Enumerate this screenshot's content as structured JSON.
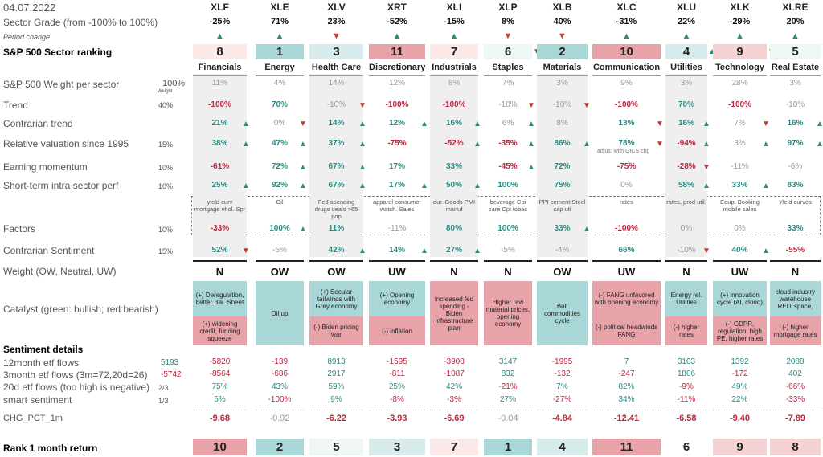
{
  "date": "04.07.2022",
  "tickers": [
    "XLF",
    "XLE",
    "XLV",
    "XRT",
    "XLI",
    "XLP",
    "XLB",
    "XLC",
    "XLU",
    "XLK",
    "XLRE"
  ],
  "sector_names": [
    "Financials",
    "Energy",
    "Health Care",
    "Discretionary",
    "Industrials",
    "Staples",
    "Materials",
    "Communication",
    "Utilities",
    "Technology",
    "Real Estate"
  ],
  "labels": {
    "sector_grade": "Sector Grade (from -100% to 100%)",
    "period_change": "Period change",
    "ranking": "S&P 500 Sector ranking",
    "weight_per_sector": "S&P 500 Weight per sector",
    "trend": "Trend",
    "contrarian_trend": "Contrarian trend",
    "relative_valuation": "Relative valuation since 1995",
    "earning_momentum": "Earning momentum",
    "short_term": "Short-term intra sector perf",
    "factors": "Factors",
    "contrarian_sentiment": "Contrarian Sentiment",
    "weight": "Weight (OW, Neutral, UW)",
    "catalyst": "Catalyst (green: bullish; red:bearish)",
    "sentiment_details": "Sentiment details",
    "etf12": "12month etf flows",
    "etf3": "3month etf flows (3m=72,20d=26)",
    "etf20": "20d etf flows (too high is negative)",
    "smart": "smart sentiment",
    "chg": "CHG_PCT_1m",
    "rank1m": "Rank 1 month return"
  },
  "factor_weights": {
    "weight_total": "100%",
    "weight_sub": "Weight",
    "trend": "40%",
    "relative_valuation": "15%",
    "earning_momentum": "10%",
    "short_term": "10%",
    "factors": "10%",
    "contrarian_sentiment": "15%",
    "etf20": "2/3",
    "smart": "1/3"
  },
  "side_values": {
    "etf12": "5193",
    "etf3": "-5742"
  },
  "sector_grade": [
    "-25%",
    "71%",
    "23%",
    "-52%",
    "-15%",
    "8%",
    "40%",
    "-31%",
    "22%",
    "-29%",
    "20%"
  ],
  "period_change": [
    "up",
    "up",
    "down",
    "up",
    "up",
    "down",
    "down",
    "up",
    "up",
    "up",
    "up"
  ],
  "ranking": [
    "8",
    "1",
    "3",
    "11",
    "7",
    "6",
    "2",
    "10",
    "4",
    "9",
    "5"
  ],
  "ranking_arrows": [
    "",
    "",
    "",
    "",
    "",
    "down",
    "",
    "",
    "up",
    "down",
    ""
  ],
  "weight_per_sector": [
    "11%",
    "4%",
    "14%",
    "12%",
    "8%",
    "7%",
    "3%",
    "9%",
    "3%",
    "28%",
    "3%"
  ],
  "trend": [
    "-100%",
    "70%",
    "-10%",
    "-100%",
    "-100%",
    "-10%",
    "-10%",
    "-100%",
    "70%",
    "-100%",
    "-10%"
  ],
  "trend_arrows": [
    "",
    "",
    "down",
    "",
    "",
    "down",
    "down",
    "",
    "",
    "",
    ""
  ],
  "contrarian_trend": [
    "21%",
    "0%",
    "14%",
    "12%",
    "16%",
    "6%",
    "8%",
    "13%",
    "16%",
    "7%",
    "16%"
  ],
  "contrarian_trend_arrows": [
    "up",
    "down",
    "up",
    "up",
    "up",
    "up",
    "",
    "down",
    "up",
    "down",
    "up"
  ],
  "relative_valuation": [
    "38%",
    "47%",
    "37%",
    "-75%",
    "-52%",
    "-35%",
    "86%",
    "78%",
    "-94%",
    "3%",
    "97%"
  ],
  "relative_valuation_arrows": [
    "up",
    "up",
    "up",
    "",
    "up",
    "up",
    "up",
    "down",
    "up",
    "up",
    "up"
  ],
  "relative_valuation_note": "adjus: with GICS chg",
  "earning_momentum": [
    "-61%",
    "72%",
    "67%",
    "17%",
    "33%",
    "-45%",
    "72%",
    "-75%",
    "-28%",
    "-11%",
    "-6%"
  ],
  "earning_momentum_arrows": [
    "",
    "up",
    "up",
    "",
    "",
    "up",
    "",
    "",
    "down",
    "",
    ""
  ],
  "short_term": [
    "25%",
    "92%",
    "67%",
    "17%",
    "50%",
    "100%",
    "75%",
    "0%",
    "58%",
    "33%",
    "83%"
  ],
  "short_term_arrows": [
    "up",
    "up",
    "up",
    "up",
    "up",
    "",
    "",
    "",
    "up",
    "up",
    ""
  ],
  "factor_notes": [
    "yield curv mortgage vhol. Spr",
    "Oil",
    "Fed spending drugs deals >65 pop",
    "apparel consumer watch. Sales",
    "dur. Goods PMI manuf",
    "beverage Cpi care Cpi tobac",
    "PPI cement Steel cap uti",
    "rates",
    "rates, prod util.",
    "Equp. Booking mobile sales",
    "Yield curves"
  ],
  "factors": [
    "-33%",
    "100%",
    "11%",
    "-11%",
    "80%",
    "100%",
    "33%",
    "-100%",
    "0%",
    "0%",
    "33%"
  ],
  "factors_arrows": [
    "",
    "up",
    "",
    "",
    "",
    "",
    "up",
    "",
    "",
    "",
    ""
  ],
  "contrarian_sentiment": [
    "52%",
    "-5%",
    "42%",
    "14%",
    "27%",
    "-5%",
    "-4%",
    "66%",
    "-10%",
    "40%",
    "-55%"
  ],
  "contrarian_sentiment_arrows": [
    "down",
    "",
    "up",
    "up",
    "up",
    "",
    "",
    "",
    "down",
    "up",
    ""
  ],
  "weight": [
    "N",
    "OW",
    "OW",
    "UW",
    "N",
    "N",
    "OW",
    "UW",
    "N",
    "UW",
    "N"
  ],
  "catalyst_top": [
    "(+) Deregulation, better Bal. Sheet",
    "Oil up",
    "(+) Secular tailwinds with Grey economy",
    "(+) Opening economy",
    "increased fed spending - Biden infrastructure plan",
    "Higher raw material prices, opening economy",
    "Bull commodities cycle",
    "(-) FANG unfavored with opening economy",
    "Energy rel. Utilities",
    "(+) innovation cycle (AI, cloud)",
    "cloud industry warehouse REIT space,"
  ],
  "catalyst_bottom": [
    "(+) widening credit, funding squeeze",
    "",
    "(-) Biden pricing war",
    "(-) inflation",
    "",
    "",
    "",
    "(-) political headwinds FANG",
    "(-) higher rates",
    "(-) GDPR, regulation, high PE, higher rates",
    "(-) higher mortgage rates"
  ],
  "catalyst_top_color": [
    "#a9d6d6",
    "#a9d6d6",
    "#a9d6d6",
    "#a9d6d6",
    "#e8a3a8",
    "#e8a3a8",
    "#a9d6d6",
    "#e8a3a8",
    "#a9d6d6",
    "#a9d6d6",
    "#a9d6d6"
  ],
  "catalyst_bottom_color": [
    "#e8a3a8",
    "#a9d6d6",
    "#e8a3a8",
    "#e8a3a8",
    "#e8a3a8",
    "#e8a3a8",
    "#a9d6d6",
    "#e8a3a8",
    "#e8a3a8",
    "#e8a3a8",
    "#e8a3a8"
  ],
  "etf12": [
    "-5820",
    "-139",
    "8913",
    "-1595",
    "-3908",
    "3147",
    "-1995",
    "7",
    "3103",
    "1392",
    "2088"
  ],
  "etf3": [
    "-8564",
    "-686",
    "2917",
    "-811",
    "-1087",
    "832",
    "-132",
    "-247",
    "1806",
    "-172",
    "402"
  ],
  "etf20": [
    "75%",
    "43%",
    "59%",
    "25%",
    "42%",
    "-21%",
    "7%",
    "82%",
    "-9%",
    "49%",
    "-66%"
  ],
  "smart": [
    "5%",
    "-100%",
    "9%",
    "-8%",
    "-3%",
    "27%",
    "-27%",
    "34%",
    "-11%",
    "22%",
    "-33%"
  ],
  "chg": [
    "-9.68",
    "-0.92",
    "-6.22",
    "-3.93",
    "-6.69",
    "-0.04",
    "-4.84",
    "-12.41",
    "-6.58",
    "-9.40",
    "-7.89"
  ],
  "rank1m": [
    "10",
    "2",
    "5",
    "3",
    "7",
    "1",
    "4",
    "11",
    "6",
    "9",
    "8"
  ],
  "colors": {
    "teal": "#a9d6d6",
    "red": "#e8a3a8",
    "light_teal": "#d9ecec",
    "light_red": "#f5d3d5",
    "pale_teal": "#eef6f6",
    "pale_red": "#fbe9ea"
  }
}
